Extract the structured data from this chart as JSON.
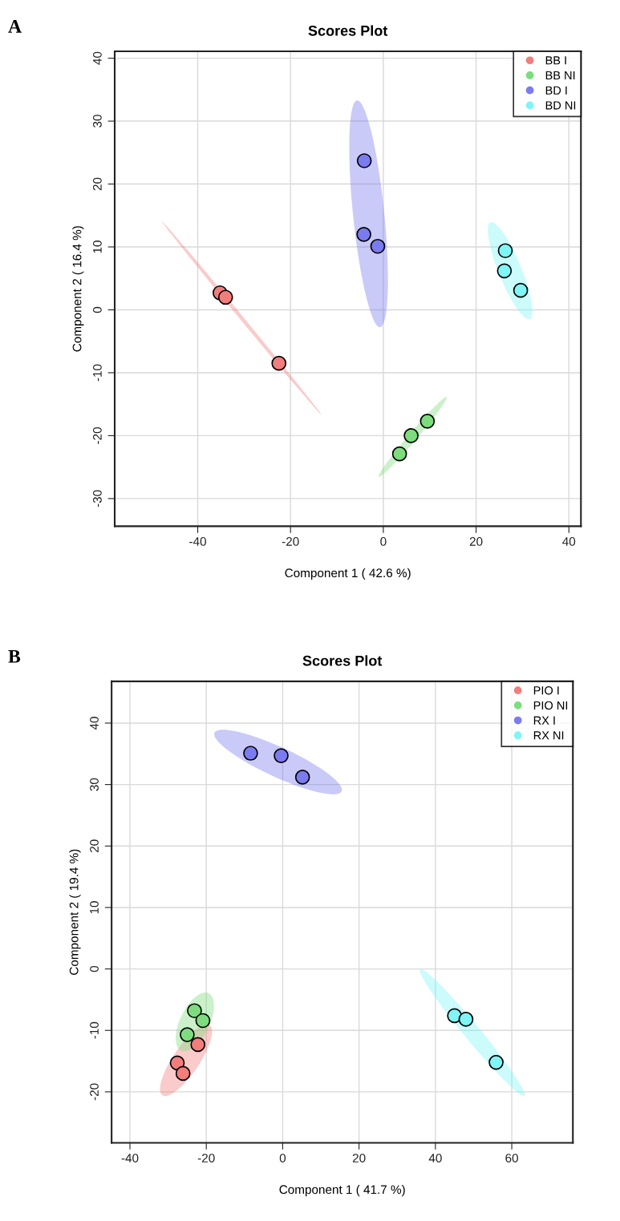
{
  "chart_data": [
    {
      "type": "scatter",
      "title": "Scores Plot",
      "xlabel": "Component 1 ( 42.6 %)",
      "ylabel": "Component 2 ( 16.4 %)",
      "annotations": [
        "A"
      ],
      "xlim": [
        -57.9,
        42.6
      ],
      "ylim": [
        -34.4,
        41.1
      ],
      "xticks": [
        -40,
        -20,
        0,
        20,
        40
      ],
      "yticks": [
        -30,
        -20,
        -10,
        0,
        10,
        20,
        30,
        40
      ],
      "grid": true,
      "legend": "top right",
      "marker": "circle",
      "series": [
        {
          "name": "BB I",
          "color": "#f27d7d",
          "x": [
            -35.2,
            -34.0,
            -22.5
          ],
          "values": [
            2.7,
            2.0,
            -8.5
          ]
        },
        {
          "name": "BB NI",
          "color": "#7ddc7d",
          "x": [
            3.5,
            6.0,
            9.5
          ],
          "values": [
            -22.9,
            -20.0,
            -17.7
          ]
        },
        {
          "name": "BD I",
          "color": "#7b7bf0",
          "x": [
            -4.1,
            -4.2,
            -1.2
          ],
          "values": [
            23.7,
            12.0,
            10.1
          ]
        },
        {
          "name": "BD NI",
          "color": "#7ff5f5",
          "x": [
            26.3,
            26.1,
            29.6
          ],
          "values": [
            9.4,
            6.2,
            3.1
          ]
        }
      ]
    },
    {
      "type": "scatter",
      "title": "Scores Plot",
      "xlabel": "Component 1 ( 41.7 %)",
      "ylabel": "Component 2 ( 19.4 %)",
      "annotations": [
        "B"
      ],
      "xlim": [
        -44.8,
        76.0
      ],
      "ylim": [
        -28.3,
        46.8
      ],
      "xticks": [
        -40,
        -20,
        0,
        20,
        40,
        60
      ],
      "yticks": [
        -20,
        -10,
        0,
        10,
        20,
        30,
        40
      ],
      "grid": true,
      "legend": "top right",
      "marker": "circle",
      "series": [
        {
          "name": "PIO I",
          "color": "#f27d7d",
          "x": [
            -27.6,
            -26.1,
            -22.2
          ],
          "values": [
            -15.3,
            -17.0,
            -12.3
          ]
        },
        {
          "name": "PIO NI",
          "color": "#7ddc7d",
          "x": [
            -23.1,
            -20.9,
            -25.0
          ],
          "values": [
            -6.8,
            -8.4,
            -10.7
          ]
        },
        {
          "name": "RX I",
          "color": "#7b7bf0",
          "x": [
            -8.4,
            -0.4,
            5.2
          ],
          "values": [
            35.1,
            34.7,
            31.2
          ]
        },
        {
          "name": "RX NI",
          "color": "#7ff5f5",
          "x": [
            45.0,
            48.0,
            55.9
          ],
          "values": [
            -7.6,
            -8.2,
            -15.2
          ]
        }
      ]
    }
  ]
}
